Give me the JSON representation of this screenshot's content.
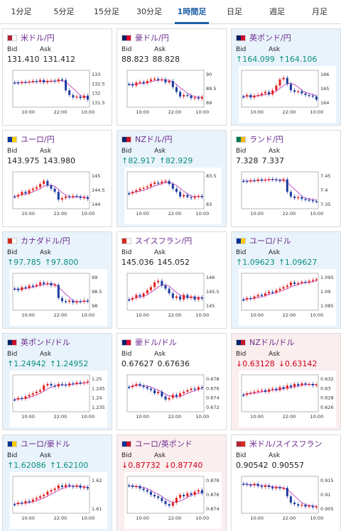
{
  "tabs": [
    "1分足",
    "5分足",
    "15分足",
    "30分足",
    "1時間足",
    "日足",
    "週足",
    "月足"
  ],
  "active_tab": "1時間足",
  "labels": {
    "bid": "Bid",
    "ask": "Ask"
  },
  "colors": {
    "purple_line": "#c040c0",
    "candle_up": "#e0201c",
    "candle_down": "#1a3c9e",
    "card_blue": "#e9f3fb",
    "card_pink": "#fbeeee"
  },
  "x_ticks": [
    "10:00",
    "22:00",
    "10:00"
  ],
  "cards": [
    {
      "pair": "米ドル/円",
      "flag": [
        "#b22234",
        "#ffffff"
      ],
      "bg": "white",
      "bid": "131.410",
      "ask": "131.412",
      "bid_dir": "",
      "ask_dir": "",
      "y_ticks": [
        "133",
        "132.5",
        "132",
        "131.5"
      ],
      "shape": [
        0.3,
        0.32,
        0.28,
        0.3,
        0.27,
        0.25,
        0.28,
        0.22,
        0.3,
        0.25,
        0.24,
        0.26,
        0.2,
        0.22,
        0.55,
        0.7,
        0.78,
        0.75,
        0.8,
        0.72,
        0.85
      ]
    },
    {
      "pair": "豪ドル/円",
      "flag": [
        "#012169",
        "#e4002b"
      ],
      "bg": "white",
      "bid": "88.823",
      "ask": "88.828",
      "bid_dir": "",
      "ask_dir": "",
      "y_ticks": [
        "90",
        "89.5",
        "89"
      ],
      "shape": [
        0.35,
        0.4,
        0.3,
        0.28,
        0.32,
        0.25,
        0.2,
        0.18,
        0.22,
        0.2,
        0.3,
        0.25,
        0.45,
        0.6,
        0.75,
        0.7,
        0.72,
        0.8,
        0.78,
        0.82,
        0.76
      ]
    },
    {
      "pair": "英ポンド/円",
      "flag": [
        "#012169",
        "#c8102e"
      ],
      "bg": "blue",
      "bid": "↑164.099",
      "ask": "↑164.106",
      "bid_dir": "up",
      "ask_dir": "up",
      "y_ticks": [
        "166",
        "165",
        "164"
      ],
      "shape": [
        0.75,
        0.7,
        0.78,
        0.72,
        0.7,
        0.65,
        0.6,
        0.68,
        0.55,
        0.4,
        0.2,
        0.15,
        0.35,
        0.55,
        0.6,
        0.58,
        0.65,
        0.7,
        0.72,
        0.75,
        0.85
      ]
    },
    {
      "pair": "ユーロ/円",
      "flag": [
        "#003399",
        "#ffcc00"
      ],
      "bg": "white",
      "bid": "143.975",
      "ask": "143.980",
      "bid_dir": "",
      "ask_dir": "",
      "y_ticks": [
        "145",
        "144.5",
        "144"
      ],
      "shape": [
        0.7,
        0.65,
        0.55,
        0.6,
        0.5,
        0.45,
        0.4,
        0.3,
        0.2,
        0.35,
        0.45,
        0.55,
        0.8,
        0.75,
        0.7,
        0.72,
        0.68,
        0.7,
        0.75,
        0.72,
        0.78
      ]
    },
    {
      "pair": "NZドル/円",
      "flag": [
        "#012169",
        "#cc142b"
      ],
      "bg": "blue",
      "bid": "↑82.917",
      "ask": "↑82.929",
      "bid_dir": "up",
      "ask_dir": "up",
      "y_ticks": [
        "83.5",
        "83"
      ],
      "shape": [
        0.6,
        0.55,
        0.5,
        0.45,
        0.42,
        0.38,
        0.3,
        0.25,
        0.28,
        0.22,
        0.2,
        0.3,
        0.45,
        0.55,
        0.7,
        0.65,
        0.72,
        0.75,
        0.7,
        0.68,
        0.72
      ]
    },
    {
      "pair": "ランド/円",
      "flag": [
        "#007a4d",
        "#ffb612"
      ],
      "bg": "white",
      "bid": "7.328",
      "ask": "7.337",
      "bid_dir": "",
      "ask_dir": "",
      "y_ticks": [
        "7.45",
        "7.4",
        "7.35"
      ],
      "shape": [
        0.2,
        0.22,
        0.18,
        0.2,
        0.15,
        0.18,
        0.16,
        0.14,
        0.15,
        0.18,
        0.2,
        0.15,
        0.55,
        0.7,
        0.75,
        0.72,
        0.78,
        0.8,
        0.82,
        0.85,
        0.86
      ]
    },
    {
      "pair": "カナダドル/円",
      "flag": [
        "#d52b1e",
        "#ffffff"
      ],
      "bg": "blue",
      "bid": "↑97.785",
      "ask": "↑97.800",
      "bid_dir": "up",
      "ask_dir": "up",
      "y_ticks": [
        "99",
        "98.5",
        "98"
      ],
      "shape": [
        0.4,
        0.45,
        0.35,
        0.38,
        0.3,
        0.32,
        0.28,
        0.2,
        0.25,
        0.22,
        0.3,
        0.28,
        0.7,
        0.8,
        0.82,
        0.78,
        0.85,
        0.8,
        0.82,
        0.78,
        0.8
      ]
    },
    {
      "pair": "スイスフラン/円",
      "flag": [
        "#d52b1e",
        "#ffffff"
      ],
      "bg": "white",
      "bid": "145.036",
      "ask": "145.052",
      "bid_dir": "",
      "ask_dir": "",
      "y_ticks": [
        "146",
        "145.5",
        "145"
      ],
      "shape": [
        0.75,
        0.7,
        0.6,
        0.65,
        0.55,
        0.45,
        0.35,
        0.2,
        0.15,
        0.3,
        0.4,
        0.55,
        0.7,
        0.65,
        0.75,
        0.6,
        0.7,
        0.65,
        0.75,
        0.68,
        0.72
      ]
    },
    {
      "pair": "ユーロ/ドル",
      "flag": [
        "#003399",
        "#ffcc00"
      ],
      "bg": "blue",
      "bid": "↑1.09623",
      "ask": "↑1.09627",
      "bid_dir": "up",
      "ask_dir": "up",
      "y_ticks": [
        "1.095",
        "1.09",
        "1.085"
      ],
      "shape": [
        0.75,
        0.7,
        0.72,
        0.65,
        0.6,
        0.62,
        0.55,
        0.5,
        0.52,
        0.45,
        0.4,
        0.35,
        0.3,
        0.2,
        0.25,
        0.22,
        0.18,
        0.2,
        0.15,
        0.12,
        0.1
      ]
    },
    {
      "pair": "英ポンド/ドル",
      "flag": [
        "#012169",
        "#c8102e"
      ],
      "bg": "blue",
      "bid": "↑1.24942",
      "ask": "↑1.24952",
      "bid_dir": "up",
      "ask_dir": "up",
      "y_ticks": [
        "1.25",
        "1.245",
        "1.24",
        "1.235"
      ],
      "shape": [
        0.7,
        0.65,
        0.68,
        0.6,
        0.55,
        0.5,
        0.45,
        0.4,
        0.25,
        0.2,
        0.25,
        0.28,
        0.2,
        0.22,
        0.25,
        0.18,
        0.2,
        0.15,
        0.18,
        0.15,
        0.12
      ]
    },
    {
      "pair": "豪ドル/ドル",
      "flag": [
        "#012169",
        "#e4002b"
      ],
      "bg": "white",
      "bid": "0.67627",
      "ask": "0.67636",
      "bid_dir": "",
      "ask_dir": "",
      "y_ticks": [
        "0.678",
        "0.676",
        "0.674",
        "0.672"
      ],
      "shape": [
        0.3,
        0.25,
        0.2,
        0.25,
        0.3,
        0.35,
        0.4,
        0.5,
        0.45,
        0.6,
        0.7,
        0.65,
        0.55,
        0.6,
        0.5,
        0.45,
        0.4,
        0.35,
        0.38,
        0.3,
        0.32
      ]
    },
    {
      "pair": "NZドル/ドル",
      "flag": [
        "#012169",
        "#cc142b"
      ],
      "bg": "pink",
      "bid": "↓0.63128",
      "ask": "↓0.63142",
      "bid_dir": "dn",
      "ask_dir": "dn",
      "y_ticks": [
        "0.632",
        "0.63",
        "0.628",
        "0.626"
      ],
      "shape": [
        0.55,
        0.5,
        0.48,
        0.45,
        0.42,
        0.4,
        0.45,
        0.38,
        0.35,
        0.4,
        0.3,
        0.35,
        0.25,
        0.3,
        0.2,
        0.25,
        0.18,
        0.22,
        0.2,
        0.25,
        0.22
      ]
    },
    {
      "pair": "ユーロ/豪ドル",
      "flag": [
        "#003399",
        "#ffcc00"
      ],
      "bg": "blue",
      "bid": "↑1.62086",
      "ask": "↑1.62100",
      "bid_dir": "up",
      "ask_dir": "up",
      "y_ticks": [
        "1.62",
        "1.61"
      ],
      "shape": [
        0.8,
        0.75,
        0.78,
        0.7,
        0.72,
        0.65,
        0.6,
        0.55,
        0.5,
        0.4,
        0.35,
        0.3,
        0.2,
        0.25,
        0.18,
        0.22,
        0.25,
        0.2,
        0.28,
        0.25,
        0.3
      ]
    },
    {
      "pair": "ユーロ/英ポンド",
      "flag": [
        "#003399",
        "#c8102e"
      ],
      "bg": "pink",
      "bid": "↓0.87732",
      "ask": "↓0.87740",
      "bid_dir": "dn",
      "ask_dir": "dn",
      "y_ticks": [
        "0.878",
        "0.876",
        "0.874"
      ],
      "shape": [
        0.2,
        0.25,
        0.22,
        0.3,
        0.35,
        0.4,
        0.5,
        0.55,
        0.6,
        0.7,
        0.8,
        0.85,
        0.75,
        0.6,
        0.5,
        0.55,
        0.45,
        0.5,
        0.4,
        0.35,
        0.45
      ]
    },
    {
      "pair": "米ドル/スイスフラン",
      "flag": [
        "#b22234",
        "#d52b1e"
      ],
      "bg": "white",
      "bid": "0.90542",
      "ask": "0.90557",
      "bid_dir": "",
      "ask_dir": "",
      "y_ticks": [
        "0.915",
        "0.91",
        "0.905"
      ],
      "shape": [
        0.15,
        0.18,
        0.2,
        0.15,
        0.22,
        0.25,
        0.2,
        0.25,
        0.3,
        0.25,
        0.3,
        0.28,
        0.55,
        0.75,
        0.8,
        0.85,
        0.82,
        0.88,
        0.85,
        0.9,
        0.88
      ]
    }
  ]
}
